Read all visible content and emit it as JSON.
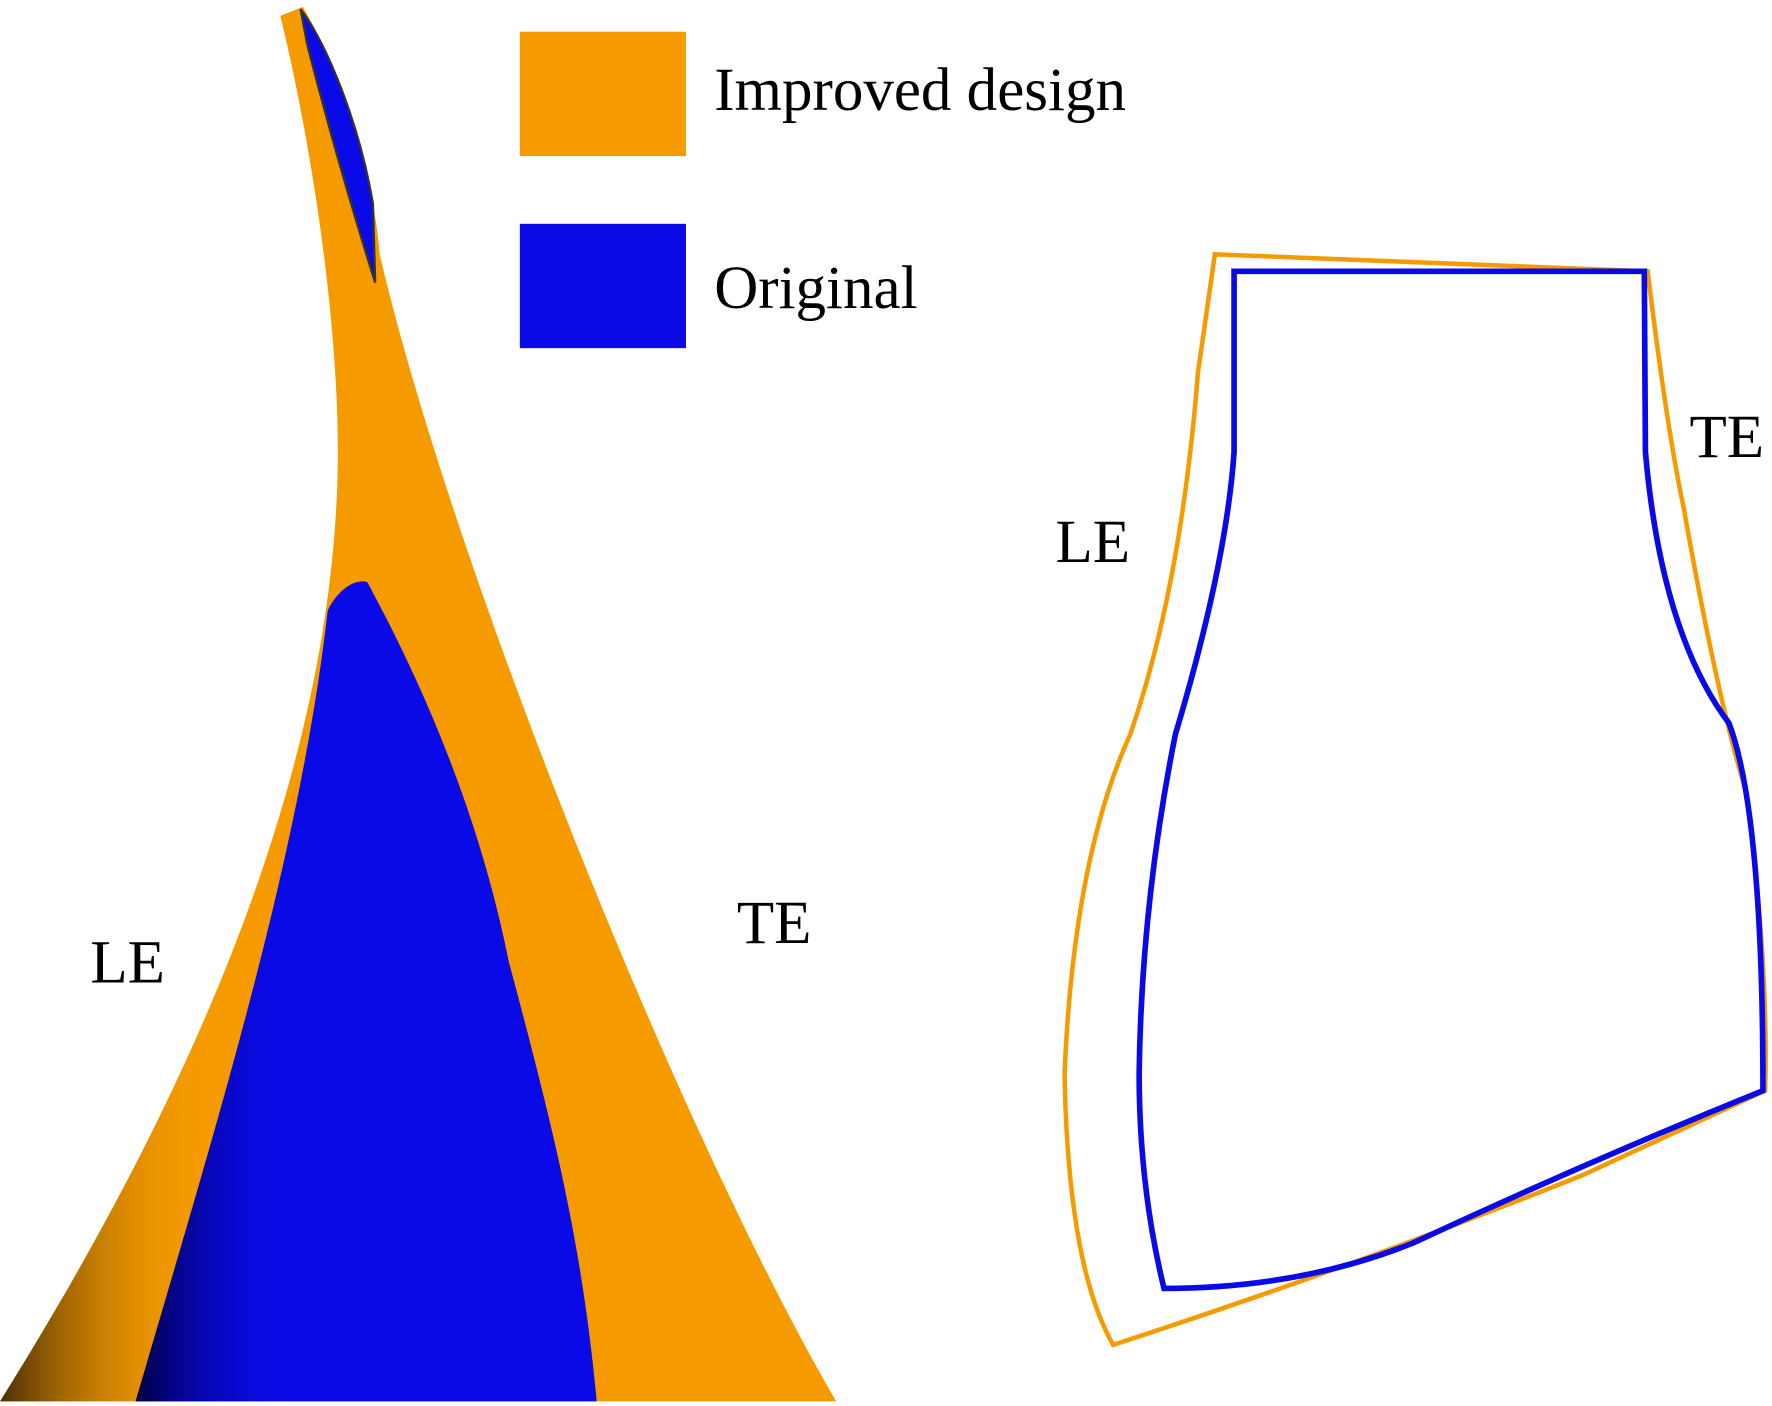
{
  "legend": [
    {
      "label": "Improved design",
      "color": "#f59b00"
    },
    {
      "label": "Original",
      "color": "#0a0ae8"
    }
  ],
  "left_view": {
    "le_label": "LE",
    "te_label": "TE"
  },
  "right_view": {
    "le_label": "LE",
    "te_label": "TE"
  }
}
